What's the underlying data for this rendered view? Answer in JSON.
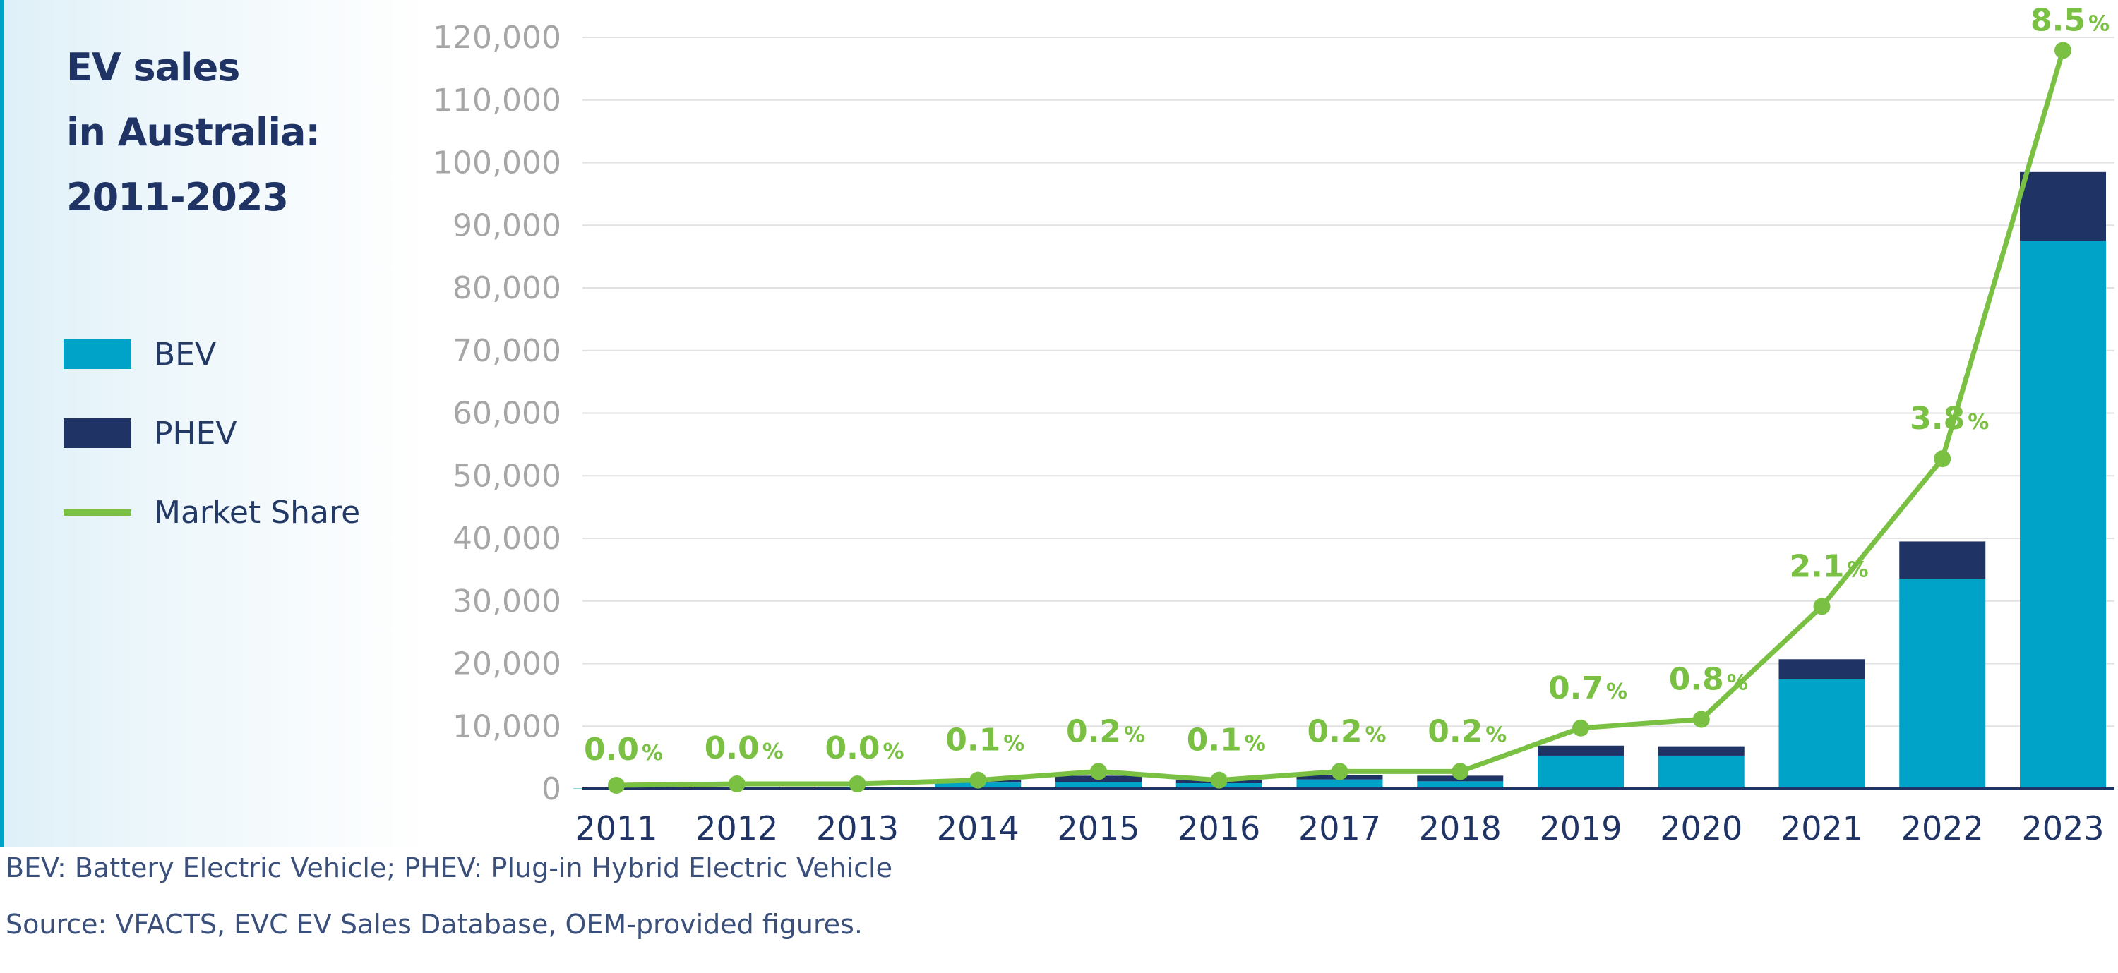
{
  "footnotes": {
    "abbreviations": "BEV: Battery Electric Vehicle; PHEV: Plug-in Hybrid Electric Vehicle",
    "source": "Source: VFACTS, EVC EV Sales Database, OEM-provided figures."
  },
  "colors": {
    "bev": "#00a3c8",
    "phev": "#1f3464",
    "market_share": "#7ac143",
    "gridline": "#e2e2e2",
    "y_tick_text": "#a6a6a6",
    "x_tick_text": "#1f3464"
  },
  "chart_data": {
    "type": "bar",
    "stacked": true,
    "title": [
      "EV sales",
      "in Australia:",
      "2011-2023"
    ],
    "categories": [
      "2011",
      "2012",
      "2013",
      "2014",
      "2015",
      "2016",
      "2017",
      "2018",
      "2019",
      "2020",
      "2021",
      "2022",
      "2023"
    ],
    "ylim": [
      0,
      120000
    ],
    "y_ticks": [
      0,
      10000,
      20000,
      30000,
      40000,
      50000,
      60000,
      70000,
      80000,
      90000,
      100000,
      110000,
      120000
    ],
    "y_tick_labels": [
      "0",
      "10,000",
      "20,000",
      "30,000",
      "40,000",
      "50,000",
      "60,000",
      "70,000",
      "80,000",
      "90,000",
      "100,000",
      "110,000",
      "120,000"
    ],
    "grid": true,
    "legend_position": "left",
    "series": [
      {
        "name": "BEV",
        "type": "bar",
        "values": [
          50,
          250,
          300,
          1000,
          1100,
          900,
          1500,
          1200,
          5300,
          5300,
          17500,
          33500,
          87500
        ]
      },
      {
        "name": "PHEV",
        "type": "bar",
        "values": [
          0,
          50,
          0,
          400,
          1000,
          500,
          700,
          900,
          1600,
          1500,
          3200,
          6000,
          11000
        ]
      },
      {
        "name": "Market Share",
        "type": "line",
        "values": [
          0.0,
          0.0,
          0.0,
          0.1,
          0.2,
          0.1,
          0.2,
          0.2,
          0.7,
          0.8,
          2.1,
          3.8,
          8.5
        ],
        "value_labels": [
          "0.0",
          "0.0",
          "0.0",
          "0.1",
          "0.2",
          "0.1",
          "0.2",
          "0.2",
          "0.7",
          "0.8",
          "2.1",
          "3.8",
          "8.5"
        ],
        "unit": "%"
      }
    ]
  }
}
